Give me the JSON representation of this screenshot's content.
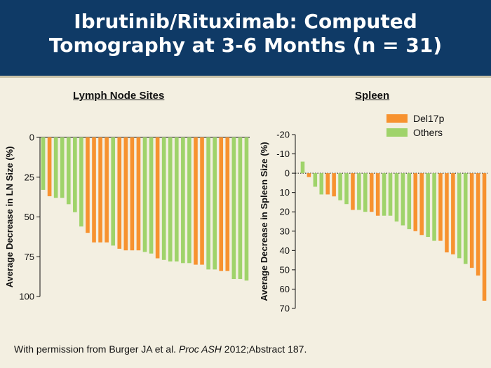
{
  "slide": {
    "title_line1": "Ibrutinib/Rituximab: Computed",
    "title_line2": "Tomography at 3-6 Months (n = 31)",
    "footer_prefix": "With permission from Burger JA et al. ",
    "footer_journal": "Proc ASH",
    "footer_suffix": " 2012;Abstract 187."
  },
  "colors": {
    "del17p": "#f7922f",
    "others": "#9fd36a",
    "header_bg": "#0f3a66",
    "background": "#f3efe1"
  },
  "chart_data": [
    {
      "type": "bar",
      "title": "Lymph Node Sites",
      "ylabel": "Average Decrease in LN Size (%)",
      "ylim": [
        0,
        100
      ],
      "y_inverted": true,
      "yticks": [
        0,
        25,
        50,
        75,
        100
      ],
      "ytick_labels": [
        "0",
        "25",
        "50",
        "75",
        "100"
      ],
      "grid": false,
      "series_keys": [
        "o",
        "d",
        "o",
        "o",
        "o",
        "o",
        "o",
        "d",
        "d",
        "d",
        "d",
        "o",
        "d",
        "d",
        "d",
        "d",
        "o",
        "o",
        "d",
        "o",
        "o",
        "o",
        "o",
        "o",
        "d",
        "d",
        "o",
        "o",
        "d",
        "d",
        "o",
        "o",
        "o"
      ],
      "values": [
        33,
        37,
        38,
        38,
        42,
        47,
        56,
        60,
        66,
        66,
        66,
        68,
        70,
        71,
        71,
        71,
        72,
        73,
        76,
        77,
        78,
        78,
        79,
        79,
        80,
        80,
        83,
        83,
        84,
        84,
        89,
        89,
        90
      ]
    },
    {
      "type": "bar",
      "title": "Spleen",
      "ylabel": "Average Decrease in Spleen Size (%)",
      "ylim": [
        -20,
        70
      ],
      "y_inverted": true,
      "yticks": [
        -20,
        -10,
        0,
        10,
        20,
        30,
        40,
        50,
        60,
        70
      ],
      "ytick_labels": [
        "-20",
        "-10",
        "0",
        "10",
        "20",
        "30",
        "40",
        "50",
        "60",
        "70"
      ],
      "zero_line": "dotted",
      "grid": false,
      "legend": {
        "position": "top-right",
        "entries": [
          "Del17p",
          "Others"
        ]
      },
      "series_keys": [
        "o",
        "d",
        "o",
        "o",
        "d",
        "d",
        "o",
        "o",
        "d",
        "o",
        "o",
        "d",
        "d",
        "o",
        "o",
        "o",
        "o",
        "o",
        "d",
        "d",
        "o",
        "o",
        "d",
        "d",
        "d",
        "o",
        "o",
        "d",
        "d",
        "d"
      ],
      "values": [
        -6,
        2,
        7,
        11,
        11,
        12,
        14,
        16,
        19,
        19,
        20,
        20,
        22,
        22,
        22,
        25,
        27,
        29,
        30,
        32,
        33,
        35,
        35,
        41,
        42,
        44,
        47,
        49,
        53,
        66
      ]
    }
  ]
}
